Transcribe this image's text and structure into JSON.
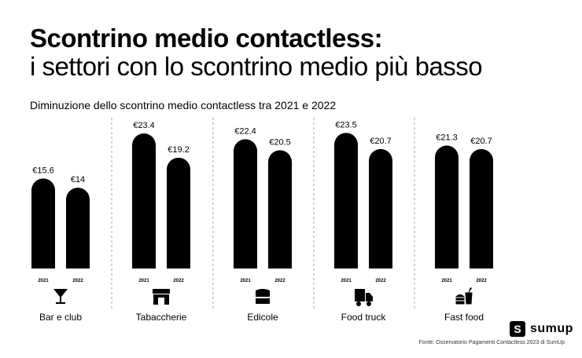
{
  "title_line1": "Scontrino medio contactless:",
  "title_line2": "i settori con lo scontrino medio più basso",
  "chart_data": {
    "type": "bar",
    "title": "Diminuzione dello scontrino medio contactless tra 2021 e 2022",
    "categories": [
      "Bar e club",
      "Tabaccherie",
      "Edicole",
      "Food truck",
      "Fast food"
    ],
    "icons": [
      "cocktail-glass-icon",
      "shop-icon",
      "kiosk-icon",
      "truck-icon",
      "burger-drink-icon"
    ],
    "series": [
      {
        "name": "2021",
        "values": [
          15.6,
          23.4,
          22.4,
          23.5,
          21.3
        ]
      },
      {
        "name": "2022",
        "values": [
          14,
          19.2,
          20.5,
          20.7,
          20.7
        ]
      }
    ],
    "value_labels": [
      [
        "€15.6",
        "€14"
      ],
      [
        "€23.4",
        "€19.2"
      ],
      [
        "€22.4",
        "€20.5"
      ],
      [
        "€23.5",
        "€20.7"
      ],
      [
        "€21.3",
        "€20.7"
      ]
    ],
    "ylim": [
      0,
      23.5
    ],
    "grid": false,
    "bar_color": "#000000"
  },
  "logo_text": "sumup",
  "source": "Fonte: Osservatorio Pagamenti Contactless 2023 di SumUp"
}
